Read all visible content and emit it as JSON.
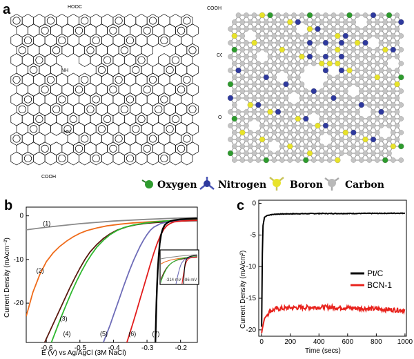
{
  "panel_a": {
    "letter": "a",
    "structure_labels": [
      "HOOC",
      "COOH",
      "COOH",
      "NH",
      "HN",
      "COOH",
      "OH",
      "OH"
    ],
    "atom_legend": [
      {
        "name": "Oxygen",
        "color": "#2e9b2e"
      },
      {
        "name": "Nitrogen",
        "color": "#2f3a9e"
      },
      {
        "name": "Boron",
        "color": "#e8e32a"
      },
      {
        "name": "Carbon",
        "color": "#b9b9b9"
      }
    ]
  },
  "chart_data": [
    {
      "panel": "b",
      "type": "line",
      "xlabel": "E (V) vs Ag/AgCl (3M NaCl)",
      "ylabel": "Current Density (mAcm⁻²)",
      "xlim": [
        -0.66,
        -0.15
      ],
      "ylim": [
        -29,
        2
      ],
      "xticks": [
        -0.6,
        -0.5,
        -0.4,
        -0.3,
        -0.2
      ],
      "xtick_labels": [
        "-0.6",
        "-0.5",
        "-0.4",
        "-0.3",
        "-0.2"
      ],
      "yticks": [
        0,
        -10,
        -20
      ],
      "ytick_labels": [
        "0",
        "-10",
        "-20"
      ],
      "series": [
        {
          "name": "(1)",
          "color": "#8a8a8a",
          "x": [
            -0.66,
            -0.6,
            -0.5,
            -0.4,
            -0.3,
            -0.2,
            -0.15
          ],
          "y": [
            -3.2,
            -2.6,
            -1.8,
            -1.2,
            -0.8,
            -0.5,
            -0.4
          ]
        },
        {
          "name": "(2)",
          "color": "#ef6b1a",
          "x": [
            -0.66,
            -0.64,
            -0.62,
            -0.6,
            -0.58,
            -0.56,
            -0.54,
            -0.52,
            -0.5,
            -0.48,
            -0.45,
            -0.42,
            -0.38,
            -0.34,
            -0.3,
            -0.25,
            -0.2,
            -0.15
          ],
          "y": [
            -23,
            -17.5,
            -13.5,
            -10.5,
            -8.5,
            -7,
            -5.8,
            -4.8,
            -4,
            -3.4,
            -2.8,
            -2.3,
            -1.9,
            -1.6,
            -1.4,
            -1.2,
            -1.1,
            -1.0
          ]
        },
        {
          "name": "(3)",
          "color": "#5a1a10",
          "x": [
            -0.605,
            -0.59,
            -0.575,
            -0.56,
            -0.545,
            -0.53,
            -0.515,
            -0.5,
            -0.485,
            -0.47,
            -0.45,
            -0.43,
            -0.41,
            -0.39,
            -0.36,
            -0.33,
            -0.3,
            -0.25,
            -0.2,
            -0.15
          ],
          "y": [
            -29,
            -26.5,
            -24,
            -21.5,
            -19,
            -16.5,
            -14.2,
            -12,
            -10,
            -8.3,
            -6.6,
            -5.2,
            -4.1,
            -3.3,
            -2.5,
            -2,
            -1.7,
            -1.4,
            -1.2,
            -1.1
          ]
        },
        {
          "name": "(4)",
          "color": "#2fb82f",
          "x": [
            -0.585,
            -0.57,
            -0.555,
            -0.54,
            -0.525,
            -0.51,
            -0.495,
            -0.48,
            -0.465,
            -0.45,
            -0.43,
            -0.41,
            -0.39,
            -0.37,
            -0.34,
            -0.31,
            -0.28,
            -0.25,
            -0.2,
            -0.15
          ],
          "y": [
            -29,
            -26,
            -23,
            -20.2,
            -17.5,
            -15,
            -12.7,
            -10.6,
            -8.8,
            -7.2,
            -5.6,
            -4.3,
            -3.4,
            -2.7,
            -2.1,
            -1.7,
            -1.4,
            -1.2,
            -1.0,
            -0.9
          ]
        },
        {
          "name": "(5)",
          "color": "#6e6cb8",
          "x": [
            -0.43,
            -0.42,
            -0.41,
            -0.4,
            -0.39,
            -0.38,
            -0.37,
            -0.36,
            -0.35,
            -0.34,
            -0.33,
            -0.32,
            -0.31,
            -0.3,
            -0.29,
            -0.28,
            -0.26,
            -0.24,
            -0.22,
            -0.2,
            -0.15
          ],
          "y": [
            -29,
            -27,
            -25,
            -22.8,
            -20.6,
            -18.4,
            -16.2,
            -14.1,
            -12.1,
            -10.2,
            -8.5,
            -6.9,
            -5.5,
            -4.3,
            -3.3,
            -2.6,
            -1.8,
            -1.4,
            -1.2,
            -1.1,
            -1.0
          ]
        },
        {
          "name": "(6)",
          "color": "#e21b1b",
          "x": [
            -0.36,
            -0.35,
            -0.34,
            -0.33,
            -0.32,
            -0.31,
            -0.3,
            -0.29,
            -0.28,
            -0.27,
            -0.26,
            -0.25,
            -0.24,
            -0.23,
            -0.22,
            -0.2,
            -0.18,
            -0.15
          ],
          "y": [
            -29,
            -26.6,
            -24.1,
            -21.5,
            -18.9,
            -16.3,
            -13.7,
            -11.1,
            -8.6,
            -6.4,
            -4.5,
            -3.1,
            -2.2,
            -1.7,
            -1.4,
            -1.2,
            -1.1,
            -1.0
          ]
        },
        {
          "name": "(7)",
          "color": "#000000",
          "x": [
            -0.275,
            -0.274,
            -0.273,
            -0.272,
            -0.27,
            -0.268,
            -0.265,
            -0.262,
            -0.258,
            -0.253,
            -0.247,
            -0.24,
            -0.23,
            -0.22,
            -0.2,
            -0.18,
            -0.15
          ],
          "y": [
            -29,
            -26,
            -23,
            -20,
            -16,
            -12.5,
            -9,
            -6.3,
            -4.3,
            -3,
            -2.1,
            -1.6,
            -1.2,
            -1,
            -0.8,
            -0.7,
            -0.6
          ]
        }
      ],
      "inset_labels": [
        "-314 mV",
        "-86 mV"
      ]
    },
    {
      "panel": "c",
      "type": "line",
      "xlabel": "Time (secs)",
      "ylabel": "Current Density (mA/cm²)",
      "xlim": [
        -20,
        1010
      ],
      "ylim": [
        -21,
        0.5
      ],
      "xticks": [
        0,
        200,
        400,
        600,
        800,
        1000
      ],
      "xtick_labels": [
        "0",
        "200",
        "400",
        "600",
        "800",
        "1000"
      ],
      "yticks": [
        0,
        -5,
        -10,
        -15,
        -20
      ],
      "ytick_labels": [
        "0",
        "-5",
        "-10",
        "-15",
        "-20"
      ],
      "legend": "right",
      "series": [
        {
          "name": "Pt/C",
          "color": "#000000",
          "noise": 0.05,
          "x": [
            0,
            5,
            10,
            20,
            40,
            60,
            100,
            200,
            400,
            600,
            800,
            1000
          ],
          "y": [
            -19.5,
            -8,
            -3.5,
            -2.2,
            -1.9,
            -1.8,
            -1.7,
            -1.65,
            -1.6,
            -1.6,
            -1.58,
            -1.55
          ]
        },
        {
          "name": "BCN-1",
          "color": "#e8231d",
          "noise": 0.35,
          "x": [
            0,
            5,
            20,
            60,
            100,
            200,
            400,
            600,
            800,
            1000
          ],
          "y": [
            -20.5,
            -19.8,
            -18.2,
            -17.0,
            -16.7,
            -16.5,
            -16.4,
            -16.5,
            -16.7,
            -16.9
          ]
        }
      ]
    }
  ]
}
